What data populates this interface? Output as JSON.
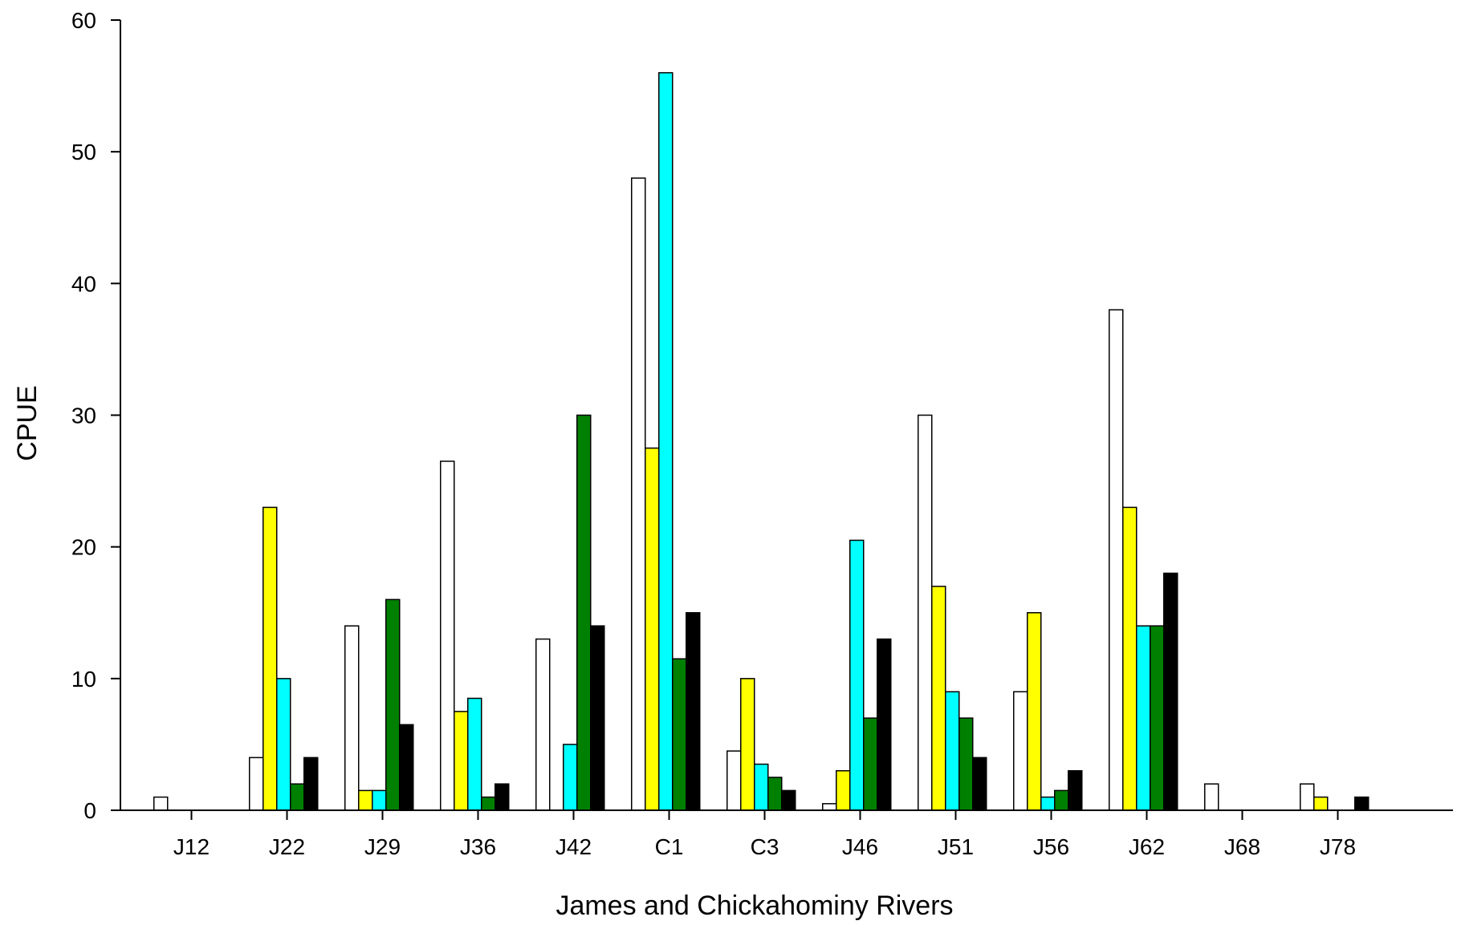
{
  "chart_data": {
    "type": "bar",
    "title": "",
    "xlabel": "James and Chickahominy Rivers",
    "ylabel": "CPUE",
    "ylim": [
      0,
      60
    ],
    "yticks": [
      0,
      10,
      20,
      30,
      40,
      50,
      60
    ],
    "grid": false,
    "legend": "none",
    "categories": [
      "J12",
      "J22",
      "J29",
      "J36",
      "J42",
      "C1",
      "C3",
      "J46",
      "J51",
      "J56",
      "J62",
      "J68",
      "J78"
    ],
    "series": [
      {
        "color": "#ffffff",
        "values": [
          1,
          4,
          14,
          26.5,
          13,
          48,
          4.5,
          0.5,
          30,
          9,
          38,
          2,
          2
        ]
      },
      {
        "color": "#ffff00",
        "values": [
          0,
          23,
          1.5,
          7.5,
          0,
          27.5,
          10,
          3,
          17,
          15,
          23,
          0,
          1
        ]
      },
      {
        "color": "#00ffff",
        "values": [
          0,
          10,
          1.5,
          8.5,
          5,
          56,
          3.5,
          20.5,
          9,
          1,
          14,
          0,
          0
        ]
      },
      {
        "color": "#008000",
        "values": [
          0,
          2,
          16,
          1,
          30,
          11.5,
          2.5,
          7,
          7,
          1.5,
          14,
          0,
          0
        ]
      },
      {
        "color": "#000000",
        "values": [
          0,
          4,
          6.5,
          2,
          14,
          15,
          1.5,
          13,
          4,
          3,
          18,
          0,
          1
        ]
      }
    ]
  }
}
